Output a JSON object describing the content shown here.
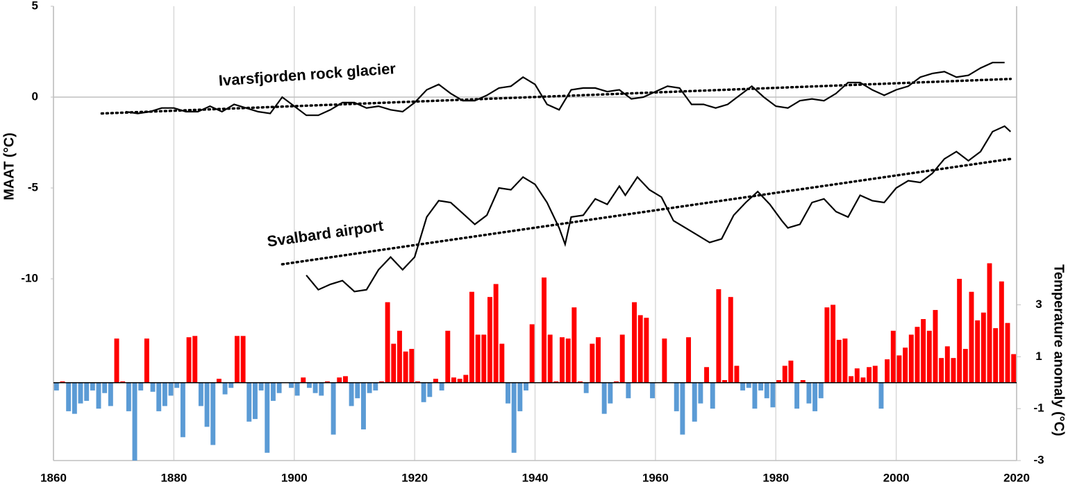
{
  "chart_data": {
    "type": "combo",
    "ylabel": "MAAT (°C)",
    "y2label": "Temperature anomaly (°C)",
    "xlim": [
      1860,
      2020
    ],
    "xticks": [
      1860,
      1880,
      1900,
      1920,
      1940,
      1960,
      1980,
      2000,
      2020
    ],
    "ylim": [
      -20,
      5
    ],
    "yticks": [
      -10,
      -5,
      0,
      5
    ],
    "y2lim": [
      -3,
      14.5
    ],
    "y2ticks": [
      -3,
      -1,
      1,
      3
    ],
    "grid": true,
    "series": [
      {
        "name": "Ivarsfjorden rock glacier",
        "color": "#000000",
        "x": [
          1872,
          1874,
          1876,
          1878,
          1880,
          1882,
          1884,
          1886,
          1888,
          1890,
          1892,
          1894,
          1896,
          1898,
          1900,
          1902,
          1904,
          1906,
          1908,
          1910,
          1912,
          1914,
          1916,
          1918,
          1920,
          1922,
          1924,
          1926,
          1928,
          1930,
          1932,
          1934,
          1936,
          1938,
          1940,
          1942,
          1944,
          1946,
          1948,
          1950,
          1952,
          1954,
          1956,
          1958,
          1960,
          1962,
          1964,
          1966,
          1968,
          1970,
          1972,
          1974,
          1976,
          1978,
          1980,
          1982,
          1984,
          1986,
          1988,
          1990,
          1992,
          1994,
          1996,
          1998,
          2000,
          2002,
          2004,
          2006,
          2008,
          2010,
          2012,
          2014,
          2016,
          2018
        ],
        "values": [
          -0.8,
          -0.9,
          -0.8,
          -0.6,
          -0.6,
          -0.8,
          -0.8,
          -0.5,
          -0.8,
          -0.4,
          -0.6,
          -0.8,
          -0.9,
          0.0,
          -0.5,
          -1.0,
          -1.0,
          -0.7,
          -0.3,
          -0.3,
          -0.6,
          -0.5,
          -0.7,
          -0.8,
          -0.3,
          0.4,
          0.7,
          0.2,
          -0.2,
          -0.2,
          0.1,
          0.5,
          0.6,
          1.1,
          0.7,
          -0.4,
          -0.7,
          0.4,
          0.5,
          0.5,
          0.3,
          0.4,
          -0.1,
          0.0,
          0.3,
          0.6,
          0.5,
          -0.4,
          -0.4,
          -0.6,
          -0.4,
          0.1,
          0.6,
          0.0,
          -0.5,
          -0.6,
          -0.2,
          -0.1,
          -0.2,
          0.2,
          0.8,
          0.8,
          0.4,
          0.1,
          0.4,
          0.6,
          1.1,
          1.3,
          1.4,
          1.1,
          1.2,
          1.6,
          1.9,
          1.9
        ],
        "trend": {
          "x": [
            1868,
            2019
          ],
          "values": [
            -0.9,
            1.0
          ]
        }
      },
      {
        "name": "Svalbard airport",
        "color": "#000000",
        "x": [
          1902,
          1904,
          1906,
          1908,
          1910,
          1912,
          1914,
          1916,
          1918,
          1920,
          1922,
          1924,
          1926,
          1928,
          1930,
          1932,
          1934,
          1936,
          1938,
          1940,
          1942,
          1944,
          1945,
          1946,
          1948,
          1950,
          1952,
          1954,
          1955,
          1957,
          1959,
          1961,
          1963,
          1965,
          1967,
          1969,
          1971,
          1973,
          1975,
          1977,
          1979,
          1981,
          1982,
          1984,
          1986,
          1988,
          1990,
          1992,
          1994,
          1996,
          1998,
          2000,
          2002,
          2004,
          2006,
          2008,
          2010,
          2012,
          2014,
          2016,
          2018,
          2019
        ],
        "values": [
          -9.8,
          -10.6,
          -10.3,
          -10.1,
          -10.7,
          -10.6,
          -9.5,
          -8.8,
          -9.5,
          -8.8,
          -6.6,
          -5.7,
          -5.8,
          -6.4,
          -7.0,
          -6.5,
          -5.0,
          -5.1,
          -4.4,
          -4.8,
          -5.8,
          -7.2,
          -8.1,
          -6.6,
          -6.5,
          -5.6,
          -5.9,
          -4.9,
          -5.4,
          -4.4,
          -5.1,
          -5.5,
          -6.8,
          -7.2,
          -7.6,
          -8.0,
          -7.8,
          -6.5,
          -5.8,
          -5.2,
          -5.9,
          -6.8,
          -7.2,
          -7.0,
          -5.8,
          -5.6,
          -6.3,
          -6.6,
          -5.4,
          -5.7,
          -5.8,
          -5.0,
          -4.6,
          -4.7,
          -4.2,
          -3.4,
          -3.0,
          -3.5,
          -3.0,
          -1.9,
          -1.6,
          -1.9
        ],
        "trend": {
          "x": [
            1898,
            2019
          ],
          "values": [
            -9.2,
            -3.4
          ]
        }
      }
    ],
    "bars": {
      "axis": "y2",
      "positive_color": "#ff0000",
      "negative_color": "#5b9bd5",
      "x": [
        1860,
        1861,
        1862,
        1863,
        1864,
        1865,
        1866,
        1867,
        1868,
        1869,
        1870,
        1871,
        1872,
        1873,
        1874,
        1875,
        1876,
        1877,
        1878,
        1879,
        1880,
        1881,
        1882,
        1883,
        1884,
        1885,
        1886,
        1887,
        1888,
        1889,
        1890,
        1891,
        1892,
        1893,
        1894,
        1895,
        1896,
        1897,
        1898,
        1899,
        1900,
        1901,
        1902,
        1903,
        1904,
        1905,
        1906,
        1907,
        1908,
        1909,
        1910,
        1911,
        1912,
        1913,
        1914,
        1915,
        1916,
        1917,
        1918,
        1919,
        1920,
        1921,
        1922,
        1923,
        1924,
        1925,
        1926,
        1927,
        1928,
        1929,
        1930,
        1931,
        1932,
        1933,
        1934,
        1935,
        1936,
        1937,
        1938,
        1939,
        1940,
        1941,
        1942,
        1943,
        1944,
        1945,
        1946,
        1947,
        1948,
        1949,
        1950,
        1951,
        1952,
        1953,
        1954,
        1955,
        1956,
        1957,
        1958,
        1959,
        1960,
        1961,
        1962,
        1963,
        1964,
        1965,
        1966,
        1967,
        1968,
        1969,
        1970,
        1971,
        1972,
        1973,
        1974,
        1975,
        1976,
        1977,
        1978,
        1979,
        1980,
        1981,
        1982,
        1983,
        1984,
        1985,
        1986,
        1987,
        1988,
        1989,
        1990,
        1991,
        1992,
        1993,
        1994,
        1995,
        1996,
        1997,
        1998,
        1999,
        2000,
        2001,
        2002,
        2003,
        2004,
        2005,
        2006,
        2007,
        2008,
        2009,
        2010,
        2011,
        2012,
        2013,
        2014,
        2015,
        2016,
        2017,
        2018,
        2019
      ],
      "values": [
        -0.3,
        0.05,
        -1.1,
        -1.2,
        -0.8,
        -0.7,
        -0.3,
        -1.0,
        -0.4,
        -0.9,
        1.7,
        0.05,
        -1.1,
        -3.0,
        -0.3,
        1.7,
        -0.35,
        -1.1,
        -0.9,
        -0.5,
        -0.2,
        -2.1,
        1.75,
        1.8,
        -0.9,
        -1.7,
        -2.4,
        0.15,
        -0.45,
        -0.2,
        1.8,
        1.8,
        -1.5,
        -1.4,
        -0.3,
        -2.7,
        -0.7,
        -0.4,
        0.0,
        -0.2,
        -0.5,
        0.2,
        -0.2,
        -0.4,
        -0.5,
        0.05,
        -2.0,
        0.2,
        0.25,
        -0.9,
        -0.6,
        -1.8,
        -0.4,
        -0.3,
        0.05,
        3.1,
        1.5,
        2.0,
        1.2,
        1.3,
        0.05,
        -0.75,
        -0.55,
        0.15,
        -0.3,
        2.0,
        0.2,
        0.15,
        0.3,
        3.5,
        1.85,
        1.85,
        3.3,
        3.8,
        1.5,
        -0.8,
        -2.7,
        -1.1,
        -0.3,
        2.25,
        0.0,
        4.05,
        1.85,
        0.05,
        1.75,
        1.7,
        2.9,
        0.05,
        -0.4,
        1.5,
        1.75,
        -1.2,
        -0.8,
        0.05,
        1.85,
        -0.6,
        3.1,
        2.6,
        2.5,
        -0.6,
        0.0,
        1.7,
        0.0,
        -1.1,
        -2.0,
        1.75,
        -1.5,
        -0.8,
        0.6,
        -1.0,
        3.6,
        0.1,
        3.3,
        0.65,
        -0.3,
        -0.2,
        -1.0,
        -0.3,
        -0.6,
        -0.95,
        0.1,
        0.65,
        0.85,
        -1.0,
        0.1,
        -0.8,
        -1.1,
        -0.6,
        2.9,
        3.0,
        1.65,
        1.7,
        0.25,
        0.55,
        0.2,
        0.6,
        0.65,
        -1.0,
        0.9,
        2.0,
        1.05,
        1.35,
        1.85,
        2.15,
        2.45,
        2.0,
        2.8,
        0.95,
        1.4,
        0.95,
        4.0,
        1.3,
        3.5,
        2.4,
        2.7,
        4.6,
        2.1,
        3.9,
        2.3,
        1.1
      ]
    }
  }
}
